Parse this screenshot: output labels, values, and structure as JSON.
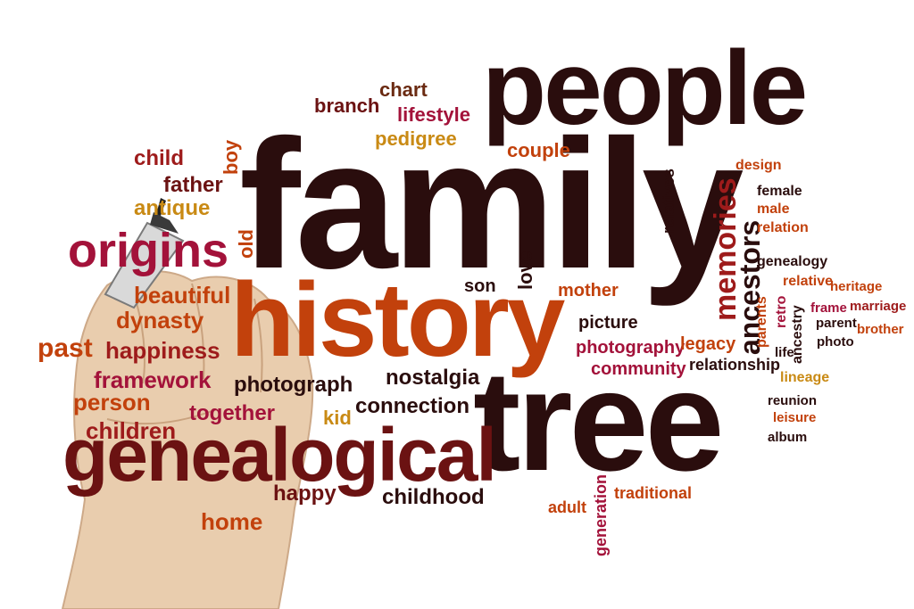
{
  "colors": {
    "dark": "#2a0d0d",
    "maroon": "#7a1414",
    "red": "#9e1b1b",
    "orange": "#c2410c",
    "amber": "#c98a14",
    "crimson": "#a3123a",
    "brown": "#6b2b12",
    "skin": "#e8c9a8"
  },
  "icons": [
    "hand-with-marker"
  ],
  "words": {
    "people": "people",
    "family": "family",
    "history": "history",
    "tree": "tree",
    "genealogical": "genealogical",
    "origins": "origins",
    "chart": "chart",
    "branch": "branch",
    "lifestyle": "lifestyle",
    "pedigree": "pedigree",
    "couple": "couple",
    "child": "child",
    "boy": "boy",
    "father": "father",
    "antique": "antique",
    "old": "old",
    "beautiful": "beautiful",
    "dynasty": "dynasty",
    "past": "past",
    "happiness": "happiness",
    "framework": "framework",
    "person": "person",
    "together": "together",
    "children": "children",
    "photograph": "photograph",
    "kid": "kid",
    "nostalgia": "nostalgia",
    "connection": "connection",
    "happy": "happy",
    "home": "home",
    "childhood": "childhood",
    "son": "son",
    "love": "love",
    "mother": "mother",
    "picture": "picture",
    "photography": "photography",
    "legacy": "legacy",
    "community": "community",
    "relationship": "relationship",
    "relatives": "relatives",
    "memories": "memories",
    "ancestors": "ancestors",
    "design": "design",
    "female": "female",
    "male": "male",
    "relation": "relation",
    "genealogy": "genealogy",
    "relative": "relative",
    "heritage": "heritage",
    "frame": "frame",
    "marriage": "marriage",
    "parents": "parents",
    "retro": "retro",
    "ancestry": "ancestry",
    "parent": "parent",
    "brother": "brother",
    "life": "life",
    "photo": "photo",
    "lineage": "lineage",
    "reunion": "reunion",
    "leisure": "leisure",
    "album": "album",
    "adult": "adult",
    "generation": "generation",
    "traditional": "traditional"
  }
}
